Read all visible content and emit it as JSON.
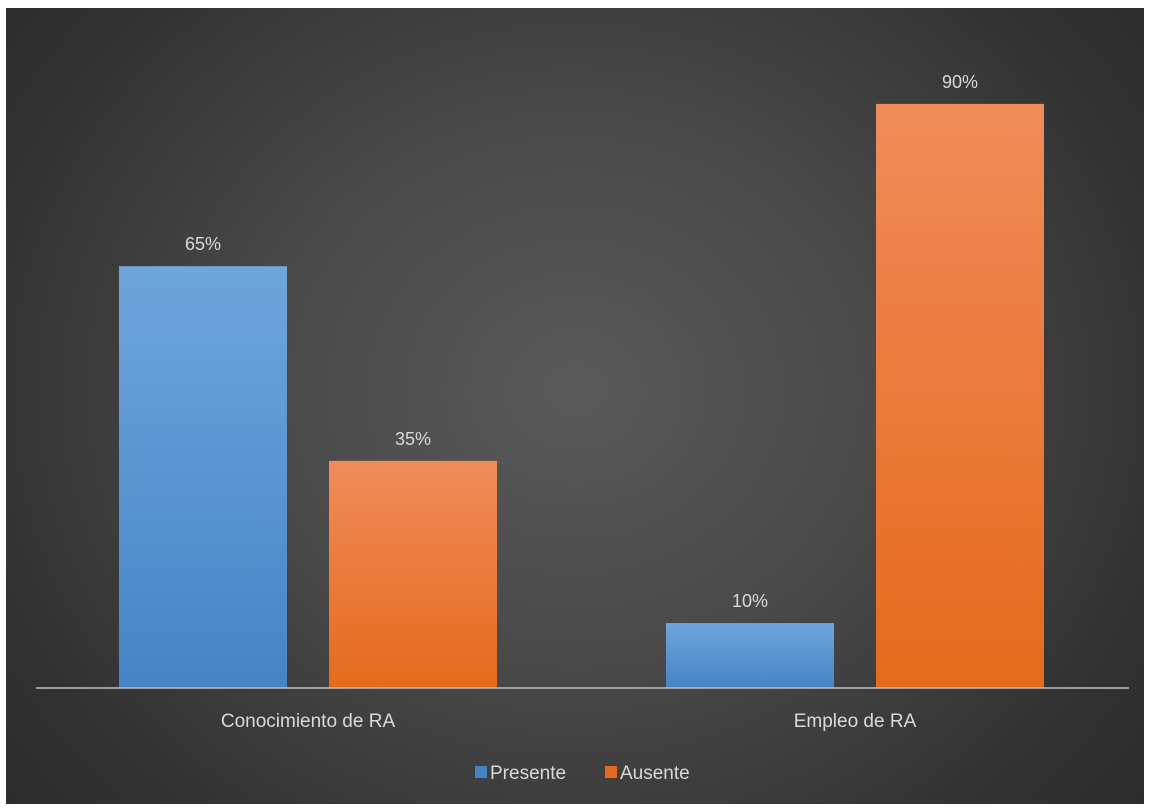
{
  "chart_data": {
    "type": "bar",
    "categories": [
      "Conocimiento de RA",
      "Empleo de RA"
    ],
    "series": [
      {
        "name": "Presente",
        "values": [
          65,
          10
        ],
        "labels": [
          "65%",
          "10%"
        ]
      },
      {
        "name": "Ausente",
        "values": [
          35,
          90
        ],
        "labels": [
          "35%",
          "90%"
        ]
      }
    ],
    "ylim": [
      0,
      100
    ],
    "unit": "%",
    "grid": false,
    "legend_position": "bottom",
    "colors": {
      "Presente": {
        "top": "#6fa6dc",
        "bottom": "#4584c4"
      },
      "Ausente": {
        "top": "#f08c5a",
        "bottom": "#e56a1c"
      },
      "axis": "#bfbfbf",
      "text": "#d9d9d9"
    }
  }
}
